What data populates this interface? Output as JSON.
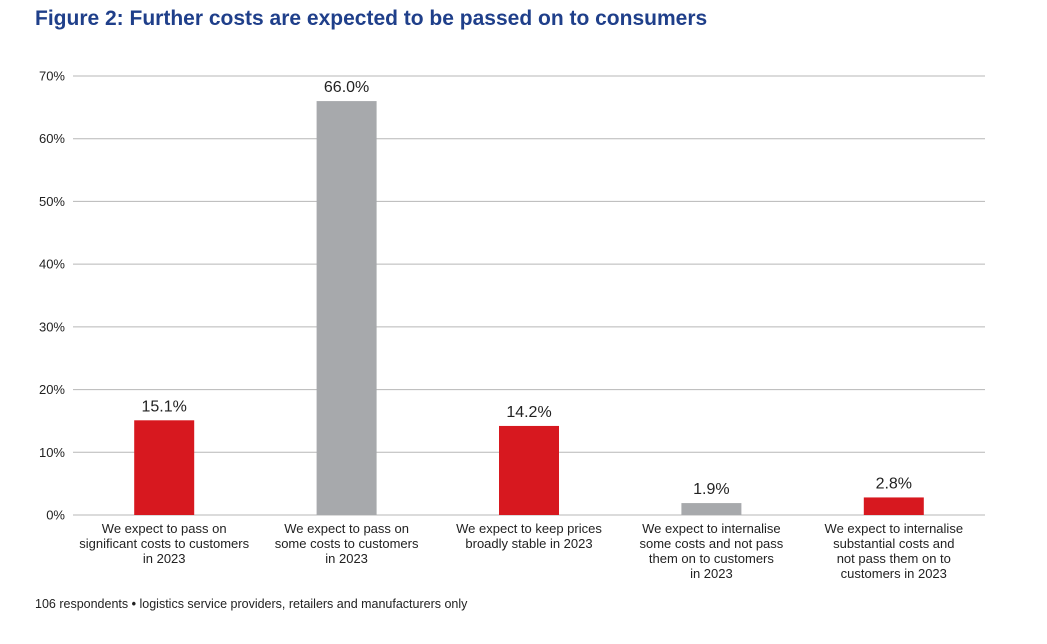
{
  "title": "Figure 2: Further costs are expected to be passed on to consumers",
  "footnote": {
    "respondents": "106 respondents",
    "separator": "•",
    "note": "logistics service providers, retailers and manufacturers only"
  },
  "colors": {
    "red": "#d7181f",
    "grey": "#a7a9ac",
    "title": "#1f3f8a",
    "grid": "#b7b7b7"
  },
  "chart_data": {
    "type": "bar",
    "ylim": [
      0,
      70
    ],
    "y_ticks": [
      0,
      10,
      20,
      30,
      40,
      50,
      60,
      70
    ],
    "y_tick_labels": [
      "0%",
      "10%",
      "20%",
      "30%",
      "40%",
      "50%",
      "60%",
      "70%"
    ],
    "grid": true,
    "categories": [
      [
        "We expect to pass on",
        "significant costs to customers",
        "in 2023"
      ],
      [
        "We expect to pass on",
        "some costs to customers",
        "in 2023"
      ],
      [
        "We expect to keep prices",
        "broadly stable in 2023"
      ],
      [
        "We expect to internalise",
        "some costs and not pass",
        "them on to customers",
        "in 2023"
      ],
      [
        "We expect to internalise",
        "substantial costs and",
        "not pass them on to",
        "customers in 2023"
      ]
    ],
    "values": [
      15.1,
      66.0,
      14.2,
      1.9,
      2.8
    ],
    "value_labels": [
      "15.1%",
      "66.0%",
      "14.2%",
      "1.9%",
      "2.8%"
    ],
    "bar_colors": [
      "red",
      "grey",
      "red",
      "grey",
      "red"
    ]
  }
}
